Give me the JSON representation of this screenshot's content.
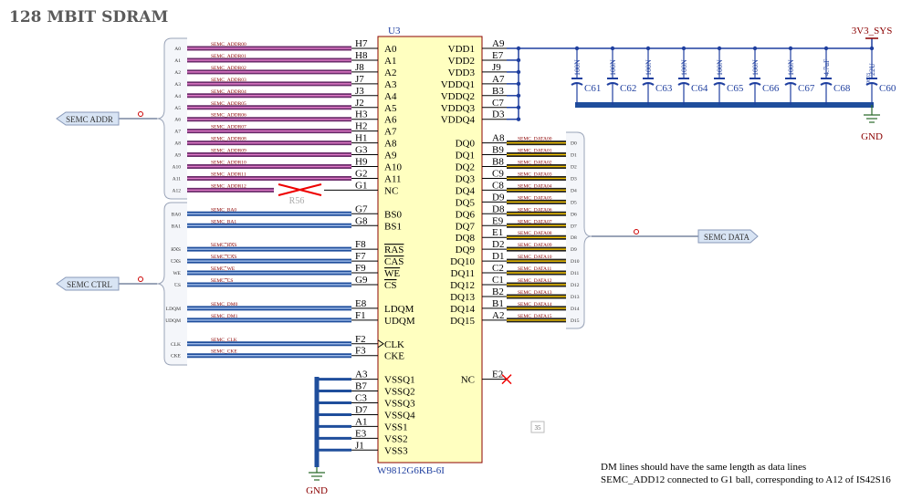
{
  "title": "128 MBIT SDRAM",
  "chip": {
    "ref": "U3",
    "part": "W9812G6KB-6I"
  },
  "left_pins": [
    {
      "pin": "H7",
      "name": "A0",
      "net": "SEMC_ADDR00",
      "port": "A0"
    },
    {
      "pin": "H8",
      "name": "A1",
      "net": "SEMC_ADDR01",
      "port": "A1"
    },
    {
      "pin": "J8",
      "name": "A2",
      "net": "SEMC_ADDR02",
      "port": "A2"
    },
    {
      "pin": "J7",
      "name": "A3",
      "net": "SEMC_ADDR03",
      "port": "A3"
    },
    {
      "pin": "J3",
      "name": "A4",
      "net": "SEMC_ADDR04",
      "port": "A4"
    },
    {
      "pin": "J2",
      "name": "A5",
      "net": "SEMC_ADDR05",
      "port": "A5"
    },
    {
      "pin": "H3",
      "name": "A6",
      "net": "SEMC_ADDR06",
      "port": "A6"
    },
    {
      "pin": "H2",
      "name": "A7",
      "net": "SEMC_ADDR07",
      "port": "A7"
    },
    {
      "pin": "H1",
      "name": "A8",
      "net": "SEMC_ADDR08",
      "port": "A8"
    },
    {
      "pin": "G3",
      "name": "A9",
      "net": "SEMC_ADDR09",
      "port": "A9"
    },
    {
      "pin": "H9",
      "name": "A10",
      "net": "SEMC_ADDR10",
      "port": "A10"
    },
    {
      "pin": "G2",
      "name": "A11",
      "net": "SEMC_ADDR11",
      "port": "A11"
    },
    {
      "pin": "G1",
      "name": "NC",
      "net": "SEMC_ADDR12",
      "port": "A12"
    },
    {
      "pin": "G7",
      "name": "BS0",
      "net": "SEMC_BA0",
      "port": "BA0"
    },
    {
      "pin": "G8",
      "name": "BS1",
      "net": "SEMC_BA1",
      "port": "BA1"
    },
    {
      "pin": "F8",
      "name": "RAS",
      "net": "SEMC_RAS",
      "port": "RAS",
      "active_low": true
    },
    {
      "pin": "F7",
      "name": "CAS",
      "net": "SEMC_CAS",
      "port": "CAS",
      "active_low": true
    },
    {
      "pin": "F9",
      "name": "WE",
      "net": "SEMC_WE",
      "port": "WE",
      "active_low": true
    },
    {
      "pin": "G9",
      "name": "CS",
      "net": "SEMC_CS",
      "port": "CS",
      "active_low": true
    },
    {
      "pin": "E8",
      "name": "LDQM",
      "net": "SEMC_DM0",
      "port": "LDQM"
    },
    {
      "pin": "F1",
      "name": "UDQM",
      "net": "SEMC_DM1",
      "port": "UDQM"
    },
    {
      "pin": "F2",
      "name": "CLK",
      "net": "SEMC_CLK",
      "port": "CLK"
    },
    {
      "pin": "F3",
      "name": "CKE",
      "net": "SEMC_CKE",
      "port": "CKE"
    },
    {
      "pin": "A3",
      "name": "VSSQ1"
    },
    {
      "pin": "B7",
      "name": "VSSQ2"
    },
    {
      "pin": "C3",
      "name": "VSSQ3"
    },
    {
      "pin": "D7",
      "name": "VSSQ4"
    },
    {
      "pin": "A1",
      "name": "VSS1"
    },
    {
      "pin": "E3",
      "name": "VSS2"
    },
    {
      "pin": "J1",
      "name": "VSS3"
    }
  ],
  "right_pins": [
    {
      "pin": "A9",
      "name": "VDD1"
    },
    {
      "pin": "E7",
      "name": "VDD2"
    },
    {
      "pin": "J9",
      "name": "VDD3"
    },
    {
      "pin": "A7",
      "name": "VDDQ1"
    },
    {
      "pin": "B3",
      "name": "VDDQ2"
    },
    {
      "pin": "C7",
      "name": "VDDQ3"
    },
    {
      "pin": "D3",
      "name": "VDDQ4"
    },
    {
      "pin": "A8",
      "name": "DQ0",
      "net": "SEMC_DATA00",
      "port": "D0"
    },
    {
      "pin": "B9",
      "name": "DQ1",
      "net": "SEMC_DATA01",
      "port": "D1"
    },
    {
      "pin": "B8",
      "name": "DQ2",
      "net": "SEMC_DATA02",
      "port": "D2"
    },
    {
      "pin": "C9",
      "name": "DQ3",
      "net": "SEMC_DATA03",
      "port": "D3"
    },
    {
      "pin": "C8",
      "name": "DQ4",
      "net": "SEMC_DATA04",
      "port": "D4"
    },
    {
      "pin": "D9",
      "name": "DQ5",
      "net": "SEMC_DATA05",
      "port": "D5"
    },
    {
      "pin": "D8",
      "name": "DQ6",
      "net": "SEMC_DATA06",
      "port": "D6"
    },
    {
      "pin": "E9",
      "name": "DQ7",
      "net": "SEMC_DATA07",
      "port": "D7"
    },
    {
      "pin": "E1",
      "name": "DQ8",
      "net": "SEMC_DATA08",
      "port": "D8"
    },
    {
      "pin": "D2",
      "name": "DQ9",
      "net": "SEMC_DATA09",
      "port": "D9"
    },
    {
      "pin": "D1",
      "name": "DQ10",
      "net": "SEMC_DATA10",
      "port": "D10"
    },
    {
      "pin": "C2",
      "name": "DQ11",
      "net": "SEMC_DATA11",
      "port": "D11"
    },
    {
      "pin": "C1",
      "name": "DQ12",
      "net": "SEMC_DATA12",
      "port": "D12"
    },
    {
      "pin": "B2",
      "name": "DQ13",
      "net": "SEMC_DATA13",
      "port": "D13"
    },
    {
      "pin": "B1",
      "name": "DQ14",
      "net": "SEMC_DATA14",
      "port": "D14"
    },
    {
      "pin": "A2",
      "name": "DQ15",
      "net": "SEMC_DATA15",
      "port": "D15"
    },
    {
      "pin": "E2",
      "name": "NC"
    }
  ],
  "ports": [
    "SEMC ADDR",
    "SEMC CTRL",
    "SEMC DATA"
  ],
  "resistor": "R56",
  "capacitors": [
    {
      "ref": "C61",
      "value": "100N"
    },
    {
      "ref": "C62",
      "value": "100N"
    },
    {
      "ref": "C63",
      "value": "100N"
    },
    {
      "ref": "C64",
      "value": "100N"
    },
    {
      "ref": "C65",
      "value": "100N"
    },
    {
      "ref": "C66",
      "value": "100N"
    },
    {
      "ref": "C67",
      "value": "100N"
    },
    {
      "ref": "C68",
      "value": "4.7uF"
    },
    {
      "ref": "C60",
      "value": "22U",
      "package": "0603"
    }
  ],
  "power": {
    "supply": "3V3_SYS",
    "ground_right": "GND",
    "ground_left": "GND"
  },
  "page_number": "35",
  "notes": [
    "DM lines should have the same length as data lines",
    "SEMC_ADD12 connected to G1 ball, corresponding to A12 of IS42S16"
  ]
}
